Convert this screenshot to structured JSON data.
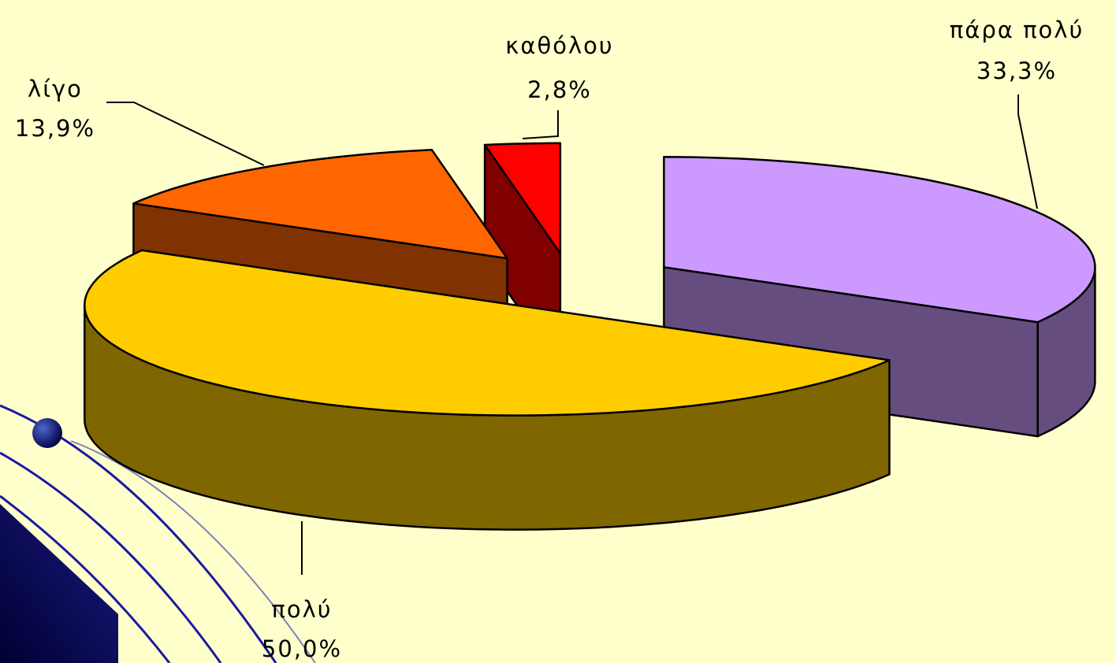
{
  "chart_data": {
    "type": "pie3d",
    "categories": [
      "πάρα πολύ",
      "πολύ",
      "λίγο",
      "καθόλου"
    ],
    "values": [
      33.3,
      50.0,
      13.9,
      2.8
    ],
    "value_labels": [
      "33,3%",
      "50,0%",
      "13,9%",
      "2,8%"
    ],
    "colors": [
      "#cc99ff",
      "#ffcc00",
      "#ff6600",
      "#ff0000"
    ]
  }
}
